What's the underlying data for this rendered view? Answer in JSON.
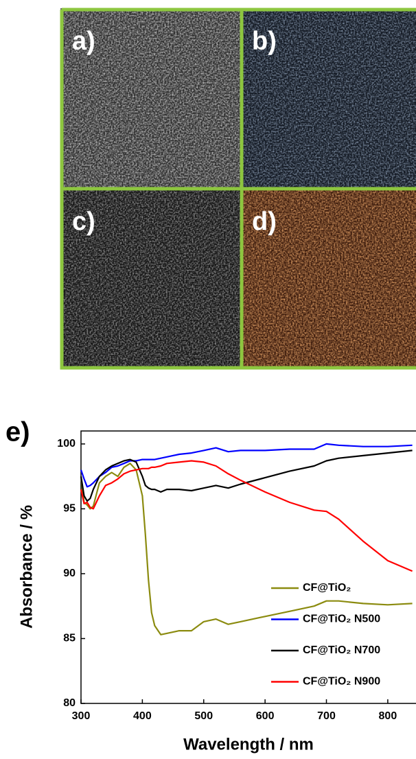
{
  "panels": [
    {
      "label": "a)"
    },
    {
      "label": "b)"
    },
    {
      "label": "c)"
    },
    {
      "label": "d)"
    }
  ],
  "chart_data": {
    "type": "line",
    "panel_label": "e)",
    "x_label": "Wavelength / nm",
    "y_label": "Absorbance / %",
    "x": [
      300,
      305,
      310,
      315,
      320,
      330,
      340,
      350,
      360,
      370,
      380,
      390,
      400,
      405,
      410,
      415,
      420,
      430,
      440,
      460,
      480,
      500,
      520,
      540,
      560,
      600,
      640,
      680,
      700,
      720,
      760,
      800,
      840
    ],
    "series": [
      {
        "name": "CF@TiO₂",
        "color": "#8b8b0f",
        "values": [
          97.5,
          95.5,
          95.3,
          95.0,
          95.2,
          97.0,
          97.5,
          97.8,
          97.5,
          98.2,
          98.5,
          98.0,
          96.0,
          93.0,
          89.5,
          87.0,
          86.0,
          85.3,
          85.4,
          85.6,
          85.6,
          86.3,
          86.5,
          86.1,
          86.3,
          86.7,
          87.1,
          87.5,
          87.9,
          87.9,
          87.7,
          87.6,
          87.7
        ]
      },
      {
        "name": "CF@TiO₂ N500",
        "color": "#0000ff",
        "values": [
          98.0,
          97.3,
          96.7,
          96.8,
          97.0,
          97.5,
          97.8,
          98.2,
          98.3,
          98.5,
          98.7,
          98.7,
          98.8,
          98.8,
          98.8,
          98.8,
          98.8,
          98.9,
          99.0,
          99.2,
          99.3,
          99.5,
          99.7,
          99.4,
          99.5,
          99.5,
          99.6,
          99.6,
          100.0,
          99.9,
          99.8,
          99.8,
          99.9
        ]
      },
      {
        "name": "CF@TiO₂ N700",
        "color": "#000000",
        "values": [
          97.5,
          96.0,
          95.6,
          95.8,
          96.5,
          97.5,
          98.0,
          98.3,
          98.5,
          98.7,
          98.8,
          98.6,
          97.5,
          96.8,
          96.6,
          96.5,
          96.5,
          96.3,
          96.5,
          96.5,
          96.4,
          96.6,
          96.8,
          96.6,
          96.9,
          97.4,
          97.9,
          98.3,
          98.7,
          98.9,
          99.1,
          99.3,
          99.5
        ]
      },
      {
        "name": "CF@TiO₂ N900",
        "color": "#ff0000",
        "values": [
          96.5,
          95.4,
          95.5,
          95.1,
          95.0,
          96.0,
          96.8,
          97.0,
          97.3,
          97.7,
          97.9,
          98.0,
          98.1,
          98.1,
          98.1,
          98.2,
          98.2,
          98.3,
          98.5,
          98.6,
          98.7,
          98.6,
          98.3,
          97.7,
          97.2,
          96.3,
          95.5,
          94.9,
          94.8,
          94.2,
          92.5,
          91.0,
          90.2
        ]
      }
    ],
    "xlim": [
      300,
      846
    ],
    "ylim": [
      80,
      101
    ],
    "xticks": [
      300,
      400,
      500,
      600,
      700,
      800
    ],
    "yticks": [
      80,
      85,
      90,
      95,
      100
    ],
    "legend": "lower right"
  }
}
